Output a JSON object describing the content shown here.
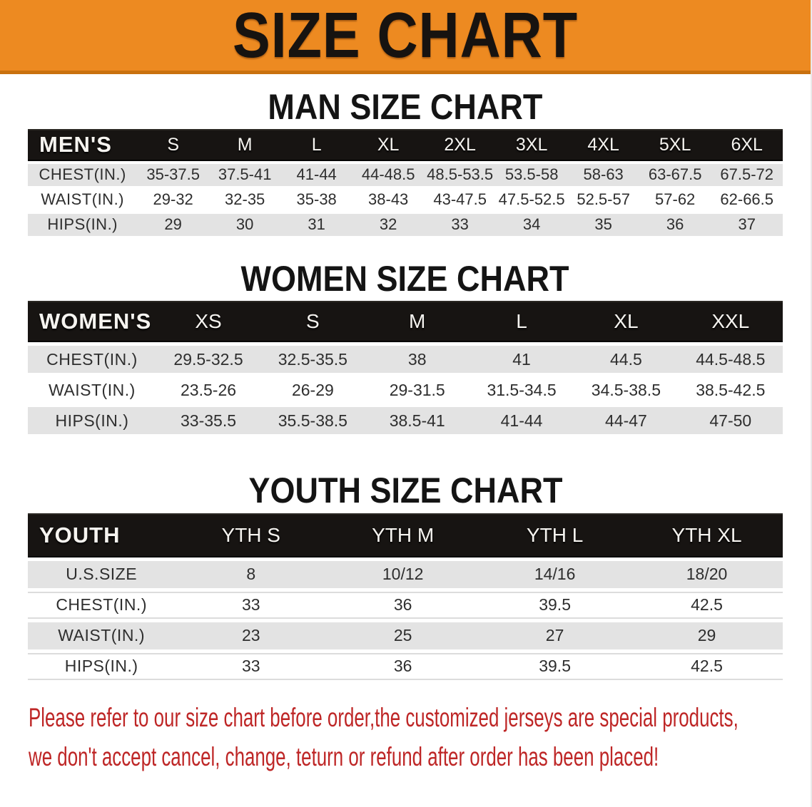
{
  "banner": {
    "title": "SIZE CHART",
    "bg_color": "#ED8A21",
    "text_color": "#171310"
  },
  "sections": [
    {
      "id": "men",
      "heading": "MAN SIZE CHART",
      "table": {
        "header_label": "MEN'S",
        "columns": [
          "S",
          "M",
          "L",
          "XL",
          "2XL",
          "3XL",
          "4XL",
          "5XL",
          "6XL"
        ],
        "rows": [
          {
            "label": "CHEST(IN.)",
            "values": [
              "35-37.5",
              "37.5-41",
              "41-44",
              "44-48.5",
              "48.5-53.5",
              "53.5-58",
              "58-63",
              "63-67.5",
              "67.5-72"
            ]
          },
          {
            "label": "WAIST(IN.)",
            "values": [
              "29-32",
              "32-35",
              "35-38",
              "38-43",
              "43-47.5",
              "47.5-52.5",
              "52.5-57",
              "57-62",
              "62-66.5"
            ]
          },
          {
            "label": "HIPS(IN.)",
            "values": [
              "29",
              "30",
              "31",
              "32",
              "33",
              "34",
              "35",
              "36",
              "37"
            ]
          }
        ]
      }
    },
    {
      "id": "women",
      "heading": "WOMEN SIZE CHART",
      "table": {
        "header_label": "WOMEN'S",
        "columns": [
          "XS",
          "S",
          "M",
          "L",
          "XL",
          "XXL"
        ],
        "rows": [
          {
            "label": "CHEST(IN.)",
            "values": [
              "29.5-32.5",
              "32.5-35.5",
              "38",
              "41",
              "44.5",
              "44.5-48.5"
            ]
          },
          {
            "label": "WAIST(IN.)",
            "values": [
              "23.5-26",
              "26-29",
              "29-31.5",
              "31.5-34.5",
              "34.5-38.5",
              "38.5-42.5"
            ]
          },
          {
            "label": "HIPS(IN.)",
            "values": [
              "33-35.5",
              "35.5-38.5",
              "38.5-41",
              "41-44",
              "44-47",
              "47-50"
            ]
          }
        ]
      }
    },
    {
      "id": "youth",
      "heading": "YOUTH SIZE CHART",
      "table": {
        "header_label": "YOUTH",
        "columns": [
          "YTH S",
          "YTH M",
          "YTH L",
          "YTH XL"
        ],
        "rows": [
          {
            "label": "U.S.SIZE",
            "values": [
              "8",
              "10/12",
              "14/16",
              "18/20"
            ]
          },
          {
            "label": "CHEST(IN.)",
            "values": [
              "33",
              "36",
              "39.5",
              "42.5"
            ]
          },
          {
            "label": "WAIST(IN.)",
            "values": [
              "23",
              "25",
              "27",
              "29"
            ]
          },
          {
            "label": "HIPS(IN.)",
            "values": [
              "33",
              "36",
              "39.5",
              "42.5"
            ]
          }
        ]
      }
    }
  ],
  "disclaimer": {
    "line1": "Please refer to our size chart before order,the customized jerseys are special products,",
    "line2": "we don't accept cancel, change, teturn or refund after order has been placed!",
    "color": "#BE2626"
  },
  "colors": {
    "banner_orange": "#ED8A21",
    "header_bar_black": "#171412",
    "row_gray": "#E3E3E3",
    "row_white": "#FFFFFF",
    "body_text": "#2E2E2E",
    "disclaimer_red": "#BE2626"
  }
}
